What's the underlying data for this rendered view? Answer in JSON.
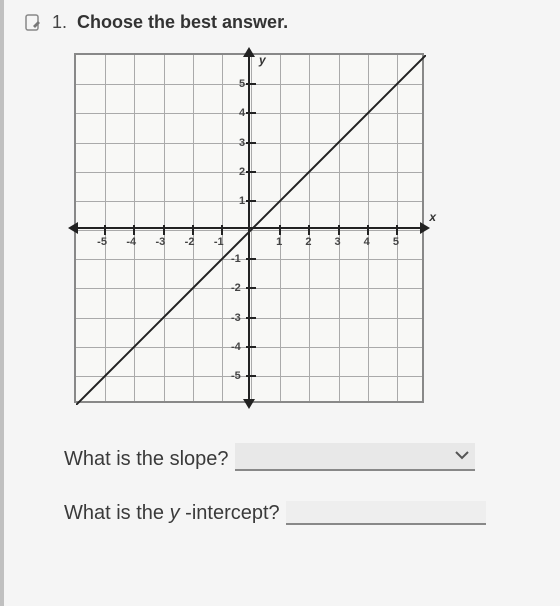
{
  "header": {
    "number": "1.",
    "title": "Choose the best answer."
  },
  "chart": {
    "type": "line",
    "xlim": [
      -6,
      6
    ],
    "ylim": [
      -6,
      6
    ],
    "tick_step": 1,
    "tick_labels_x": [
      "-5",
      "-4",
      "-3",
      "-2",
      "-1",
      "1",
      "2",
      "3",
      "4",
      "5"
    ],
    "tick_labels_y": [
      "-5",
      "-4",
      "-3",
      "-2",
      "-1",
      "1",
      "2",
      "3",
      "4",
      "5"
    ],
    "x_axis_label": "x",
    "y_axis_label": "y",
    "line_points": [
      [
        -6,
        -6
      ],
      [
        6,
        6
      ]
    ],
    "line_color": "#222222",
    "line_width": 2,
    "grid_color": "#aaaaaa",
    "axis_color": "#222222",
    "background_color": "#f8f8f6",
    "border_color": "#888888"
  },
  "prompts": {
    "slope": "What is the slope?",
    "yintercept_prefix": "What is the ",
    "yintercept_var": "y",
    "yintercept_suffix": " -intercept?"
  }
}
